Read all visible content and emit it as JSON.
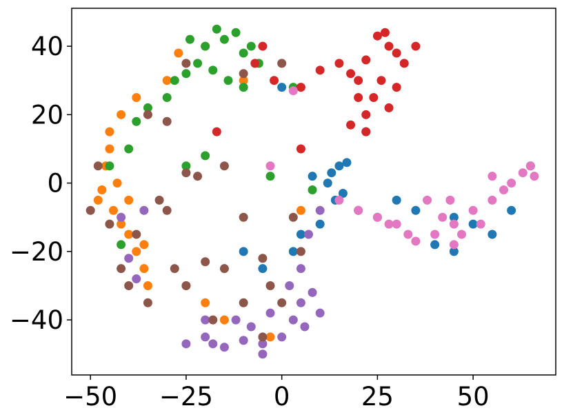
{
  "chart_data": {
    "type": "scatter",
    "xlim": [
      -54.9,
      71.6
    ],
    "ylim": [
      -56.1,
      51.1
    ],
    "xticks": [
      {
        "value": -50,
        "label": "−50"
      },
      {
        "value": -25,
        "label": "−25"
      },
      0,
      25,
      50
    ],
    "yticks": [
      {
        "value": -40,
        "label": "−40"
      },
      {
        "value": -20,
        "label": "−20"
      },
      0,
      20,
      40
    ],
    "series": [
      {
        "color": "#1f77b4",
        "x": [
          15,
          13,
          17,
          12,
          16,
          20,
          25,
          35,
          45,
          50,
          60,
          65,
          10,
          5,
          3,
          -10,
          -5,
          22,
          0,
          45,
          55,
          30,
          8,
          14,
          40
        ],
        "values": [
          5,
          3,
          6,
          0,
          -3,
          -8,
          -10,
          -8,
          -10,
          -12,
          -8,
          5,
          -12,
          -15,
          -20,
          -20,
          -25,
          15,
          28,
          -20,
          -15,
          -5,
          2,
          -5,
          -18
        ]
      },
      {
        "color": "#ff7f0e",
        "x": [
          -48,
          -46,
          -45,
          -44,
          -42,
          -40,
          -38,
          -36,
          -35,
          -45,
          -43,
          -40,
          -38,
          -30,
          -27,
          -20,
          -25,
          -20,
          -15,
          -42,
          -47,
          -36,
          5,
          -3,
          -10
        ],
        "values": [
          -5,
          5,
          10,
          -8,
          -12,
          -15,
          -20,
          -25,
          -30,
          15,
          0,
          -5,
          25,
          30,
          38,
          40,
          -30,
          -35,
          -40,
          20,
          -2,
          -18,
          -8,
          -45,
          30
        ]
      },
      {
        "color": "#2ca02c",
        "x": [
          -17,
          -15,
          -20,
          -12,
          -10,
          -8,
          -22,
          -25,
          -28,
          -30,
          -35,
          -38,
          -14,
          -18,
          -6,
          -40,
          -45,
          -25,
          -20,
          -42,
          -3,
          3,
          8,
          -10,
          -24
        ],
        "values": [
          45,
          42,
          40,
          44,
          38,
          40,
          35,
          32,
          30,
          25,
          22,
          18,
          30,
          33,
          35,
          10,
          5,
          5,
          8,
          -18,
          2,
          28,
          -2,
          28,
          42
        ]
      },
      {
        "color": "#d62728",
        "x": [
          25,
          28,
          30,
          22,
          32,
          26,
          30,
          20,
          18,
          24,
          28,
          22,
          15,
          10,
          5,
          -2,
          -7,
          18,
          22,
          -5,
          35,
          27,
          20,
          5,
          -17
        ],
        "values": [
          43,
          40,
          38,
          36,
          35,
          30,
          28,
          30,
          32,
          25,
          22,
          20,
          35,
          33,
          28,
          30,
          35,
          17,
          15,
          40,
          40,
          44,
          25,
          10,
          15
        ]
      },
      {
        "color": "#9467bd",
        "x": [
          -25,
          -20,
          -15,
          -10,
          -5,
          0,
          3,
          5,
          8,
          10,
          -20,
          -12,
          -3,
          5,
          7,
          10,
          -38,
          -40,
          -42,
          -36,
          -5,
          2,
          -8,
          -18,
          6
        ],
        "values": [
          -47,
          -45,
          -48,
          -46,
          -50,
          -45,
          -40,
          -35,
          -32,
          -38,
          -40,
          -40,
          -38,
          -25,
          -15,
          -8,
          -28,
          -22,
          -10,
          -8,
          -47,
          -30,
          -42,
          -47,
          -42
        ]
      },
      {
        "color": "#8c564b",
        "x": [
          -50,
          -48,
          -45,
          -42,
          -40,
          -38,
          -35,
          -32,
          -30,
          -28,
          -25,
          -20,
          -15,
          -25,
          -22,
          -15,
          -10,
          -5,
          -3,
          0,
          -10,
          -18,
          -5,
          5,
          3,
          -35,
          -30,
          -25,
          -10,
          0
        ],
        "values": [
          -8,
          5,
          -12,
          -25,
          -30,
          -15,
          -35,
          -5,
          -8,
          -25,
          -30,
          -23,
          -25,
          3,
          2,
          5,
          -10,
          -22,
          -30,
          -35,
          -35,
          -40,
          -45,
          -20,
          -10,
          20,
          18,
          35,
          32,
          35
        ]
      },
      {
        "color": "#e377c2",
        "x": [
          15,
          20,
          25,
          30,
          33,
          35,
          40,
          42,
          45,
          47,
          50,
          55,
          58,
          60,
          63,
          65,
          66,
          45,
          38,
          52,
          3,
          -3,
          55,
          28,
          44
        ],
        "values": [
          -5,
          -8,
          -10,
          -12,
          -15,
          -17,
          -15,
          -10,
          -12,
          -15,
          -8,
          -5,
          -2,
          0,
          3,
          5,
          2,
          -18,
          -5,
          -12,
          27,
          5,
          2,
          -12,
          -5
        ]
      }
    ]
  }
}
